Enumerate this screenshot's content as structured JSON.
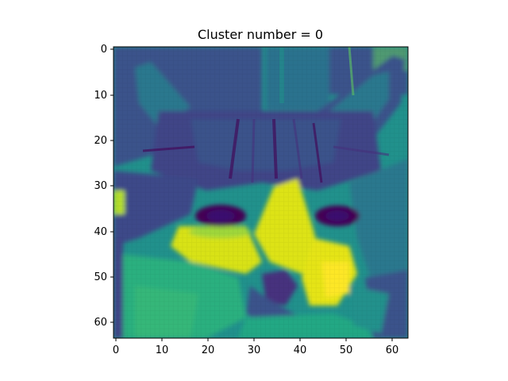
{
  "figure": {
    "title": "Cluster number = 0",
    "x_tick_labels": [
      "0",
      "10",
      "20",
      "30",
      "40",
      "50",
      "60"
    ],
    "y_tick_labels": [
      "0",
      "10",
      "20",
      "30",
      "40",
      "50",
      "60"
    ]
  },
  "image": {
    "subject": "cat-face",
    "colormap": "viridis",
    "pixel_grid": [
      64,
      64
    ],
    "colors": {
      "dark": "#440154",
      "mid_dark": "#3b528b",
      "mid": "#21918c",
      "light": "#5ec962",
      "bright": "#fde725"
    }
  }
}
